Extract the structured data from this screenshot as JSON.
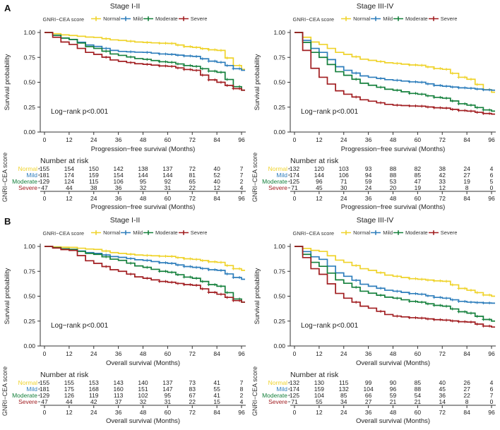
{
  "figure": {
    "panel_a_label": "A",
    "panel_b_label": "B",
    "legend_title": "GNRI−CEA score",
    "ylabel": "Survival probability",
    "risk_header": "Number at risk",
    "risk_axis_label": "GNRI−CEA score",
    "annotation": "Log−rank p<0.001",
    "groups": [
      {
        "name": "Normal",
        "color": "#EFD32B"
      },
      {
        "name": "Mild",
        "color": "#2E7EBC"
      },
      {
        "name": "Moderate",
        "color": "#15803C"
      },
      {
        "name": "Severe",
        "color": "#A11D20"
      }
    ],
    "axis_color": "#333333"
  },
  "chart_data": [
    {
      "type": "line",
      "panel": "A",
      "title": "Stage I-II",
      "xlabel": "Progression−free survival (Months)",
      "ylabel": "Survival probability",
      "annotation": "Log−rank p<0.001",
      "x": [
        0,
        12,
        24,
        36,
        48,
        60,
        72,
        84,
        96
      ],
      "ylim": [
        0,
        1
      ],
      "yticks": [
        1.0,
        0.75,
        0.5,
        0.25,
        0.0
      ],
      "series": [
        {
          "name": "Normal",
          "color": "#EFD32B",
          "values": [
            1.0,
            0.97,
            0.95,
            0.92,
            0.9,
            0.89,
            0.85,
            0.82,
            0.63
          ]
        },
        {
          "name": "Mild",
          "color": "#2E7EBC",
          "values": [
            1.0,
            0.93,
            0.86,
            0.81,
            0.8,
            0.78,
            0.76,
            0.7,
            0.62
          ]
        },
        {
          "name": "Moderate",
          "color": "#15803C",
          "values": [
            1.0,
            0.93,
            0.84,
            0.77,
            0.73,
            0.7,
            0.66,
            0.6,
            0.42
          ]
        },
        {
          "name": "Severe",
          "color": "#A11D20",
          "values": [
            1.0,
            0.88,
            0.78,
            0.71,
            0.68,
            0.66,
            0.62,
            0.5,
            0.42
          ]
        }
      ],
      "number_at_risk": [
        {
          "name": "Normal",
          "values": [
            155,
            154,
            150,
            142,
            138,
            137,
            72,
            40,
            7
          ]
        },
        {
          "name": "Mild",
          "values": [
            181,
            174,
            159,
            154,
            144,
            144,
            81,
            52,
            7
          ]
        },
        {
          "name": "Moderate",
          "values": [
            129,
            124,
            115,
            106,
            95,
            92,
            65,
            40,
            2
          ]
        },
        {
          "name": "Severe",
          "values": [
            47,
            44,
            38,
            36,
            32,
            31,
            22,
            12,
            4
          ]
        }
      ]
    },
    {
      "type": "line",
      "panel": "A",
      "title": "Stage III-IV",
      "xlabel": "Progression−free survival (Months)",
      "ylabel": "Survival probability",
      "annotation": "Log−rank p<0.001",
      "x": [
        0,
        12,
        24,
        36,
        48,
        60,
        72,
        84,
        96
      ],
      "ylim": [
        0,
        1
      ],
      "yticks": [
        1.0,
        0.75,
        0.5,
        0.25,
        0.0
      ],
      "series": [
        {
          "name": "Normal",
          "color": "#EFD32B",
          "values": [
            1.0,
            0.88,
            0.78,
            0.72,
            0.69,
            0.67,
            0.63,
            0.53,
            0.4
          ]
        },
        {
          "name": "Mild",
          "color": "#2E7EBC",
          "values": [
            1.0,
            0.8,
            0.62,
            0.55,
            0.52,
            0.5,
            0.46,
            0.44,
            0.42
          ]
        },
        {
          "name": "Moderate",
          "color": "#15803C",
          "values": [
            1.0,
            0.75,
            0.57,
            0.47,
            0.42,
            0.38,
            0.34,
            0.27,
            0.21
          ]
        },
        {
          "name": "Severe",
          "color": "#A11D20",
          "values": [
            1.0,
            0.55,
            0.38,
            0.31,
            0.27,
            0.26,
            0.24,
            0.21,
            0.18
          ]
        }
      ],
      "number_at_risk": [
        {
          "name": "Normal",
          "values": [
            132,
            120,
            103,
            93,
            88,
            82,
            38,
            24,
            4
          ]
        },
        {
          "name": "Mild",
          "values": [
            174,
            144,
            106,
            94,
            88,
            85,
            42,
            27,
            6
          ]
        },
        {
          "name": "Moderate",
          "values": [
            125,
            96,
            71,
            59,
            53,
            47,
            33,
            19,
            5
          ]
        },
        {
          "name": "Severe",
          "values": [
            71,
            45,
            30,
            24,
            20,
            19,
            12,
            8,
            0
          ]
        }
      ]
    },
    {
      "type": "line",
      "panel": "B",
      "title": "Stage I-II",
      "xlabel": "Overall survival (Months)",
      "ylabel": "Survival probability",
      "annotation": "Log−rank p<0.001",
      "x": [
        0,
        12,
        24,
        36,
        48,
        60,
        72,
        84,
        96
      ],
      "ylim": [
        0,
        1
      ],
      "yticks": [
        1.0,
        0.75,
        0.5,
        0.25,
        0.0
      ],
      "series": [
        {
          "name": "Normal",
          "color": "#EFD32B",
          "values": [
            1.0,
            0.99,
            0.97,
            0.93,
            0.91,
            0.9,
            0.87,
            0.84,
            0.76
          ]
        },
        {
          "name": "Mild",
          "color": "#2E7EBC",
          "values": [
            1.0,
            0.97,
            0.93,
            0.89,
            0.86,
            0.83,
            0.79,
            0.76,
            0.67
          ]
        },
        {
          "name": "Moderate",
          "color": "#15803C",
          "values": [
            1.0,
            0.97,
            0.92,
            0.86,
            0.79,
            0.74,
            0.68,
            0.6,
            0.44
          ]
        },
        {
          "name": "Severe",
          "color": "#A11D20",
          "values": [
            1.0,
            0.96,
            0.83,
            0.75,
            0.68,
            0.64,
            0.61,
            0.52,
            0.44
          ]
        }
      ],
      "number_at_risk": [
        {
          "name": "Normal",
          "values": [
            155,
            155,
            153,
            143,
            140,
            137,
            73,
            41,
            7
          ]
        },
        {
          "name": "Mild",
          "values": [
            181,
            175,
            168,
            160,
            151,
            147,
            83,
            55,
            8
          ]
        },
        {
          "name": "Moderate",
          "values": [
            129,
            126,
            119,
            113,
            102,
            95,
            67,
            41,
            2
          ]
        },
        {
          "name": "Severe",
          "values": [
            47,
            44,
            42,
            37,
            32,
            31,
            22,
            15,
            4
          ]
        }
      ]
    },
    {
      "type": "line",
      "panel": "B",
      "title": "Stage III-IV",
      "xlabel": "Overall survival (Months)",
      "ylabel": "Survival probability",
      "annotation": "Log−rank p<0.001",
      "x": [
        0,
        12,
        24,
        36,
        48,
        60,
        72,
        84,
        96
      ],
      "ylim": [
        0,
        1
      ],
      "yticks": [
        1.0,
        0.75,
        0.5,
        0.25,
        0.0
      ],
      "series": [
        {
          "name": "Normal",
          "color": "#EFD32B",
          "values": [
            1.0,
            0.95,
            0.84,
            0.76,
            0.7,
            0.67,
            0.65,
            0.56,
            0.5
          ]
        },
        {
          "name": "Mild",
          "color": "#2E7EBC",
          "values": [
            1.0,
            0.87,
            0.7,
            0.6,
            0.55,
            0.52,
            0.48,
            0.44,
            0.43
          ]
        },
        {
          "name": "Moderate",
          "color": "#15803C",
          "values": [
            1.0,
            0.8,
            0.63,
            0.53,
            0.48,
            0.44,
            0.4,
            0.33,
            0.25
          ]
        },
        {
          "name": "Severe",
          "color": "#A11D20",
          "values": [
            1.0,
            0.72,
            0.48,
            0.38,
            0.3,
            0.28,
            0.26,
            0.24,
            0.19
          ]
        }
      ],
      "number_at_risk": [
        {
          "name": "Normal",
          "values": [
            132,
            130,
            115,
            99,
            90,
            85,
            40,
            26,
            4
          ]
        },
        {
          "name": "Mild",
          "values": [
            174,
            159,
            132,
            104,
            96,
            88,
            45,
            27,
            6
          ]
        },
        {
          "name": "Moderate",
          "values": [
            125,
            104,
            85,
            66,
            59,
            54,
            36,
            22,
            7
          ]
        },
        {
          "name": "Severe",
          "values": [
            71,
            55,
            34,
            27,
            21,
            21,
            14,
            8,
            0
          ]
        }
      ]
    }
  ]
}
